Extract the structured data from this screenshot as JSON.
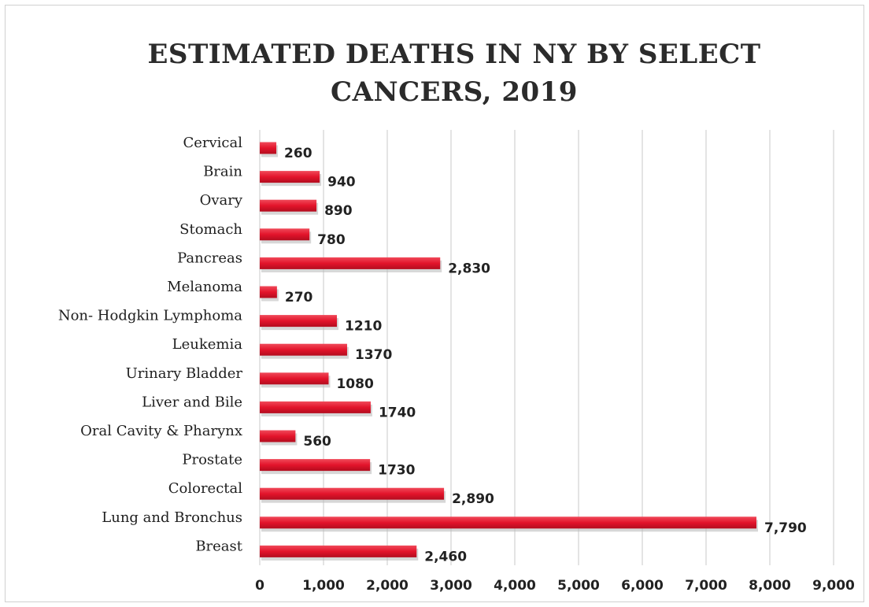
{
  "chart_data": {
    "type": "bar",
    "orientation": "horizontal",
    "title_line1": "ESTIMATED DEATHS IN NY BY SELECT",
    "title_line2": "CANCERS, 2019",
    "categories": [
      "Cervical",
      "Brain",
      "Ovary",
      "Stomach",
      "Pancreas",
      "Melanoma",
      "Non- Hodgkin Lymphoma",
      "Leukemia",
      "Urinary Bladder",
      "Liver and Bile",
      "Oral Cavity & Pharynx",
      "Prostate",
      "Colorectal",
      "Lung and Bronchus",
      "Breast"
    ],
    "values": [
      260,
      940,
      890,
      780,
      2830,
      270,
      1210,
      1370,
      1080,
      1740,
      560,
      1730,
      2890,
      7790,
      2460
    ],
    "value_labels": [
      "260",
      "940",
      "890",
      "780",
      "2,830",
      "270",
      "1210",
      "1370",
      "1080",
      "1740",
      "560",
      "1730",
      "2,890",
      "7,790",
      "2,460"
    ],
    "xlim": [
      0,
      9000
    ],
    "xticks": [
      0,
      1000,
      2000,
      3000,
      4000,
      5000,
      6000,
      7000,
      8000,
      9000
    ],
    "xtick_labels": [
      "0",
      "1,000",
      "2,000",
      "3,000",
      "4,000",
      "5,000",
      "6,000",
      "7,000",
      "8,000",
      "9,000"
    ],
    "grid": "vertical",
    "legend": "none",
    "bar_color": "#e3142b"
  }
}
